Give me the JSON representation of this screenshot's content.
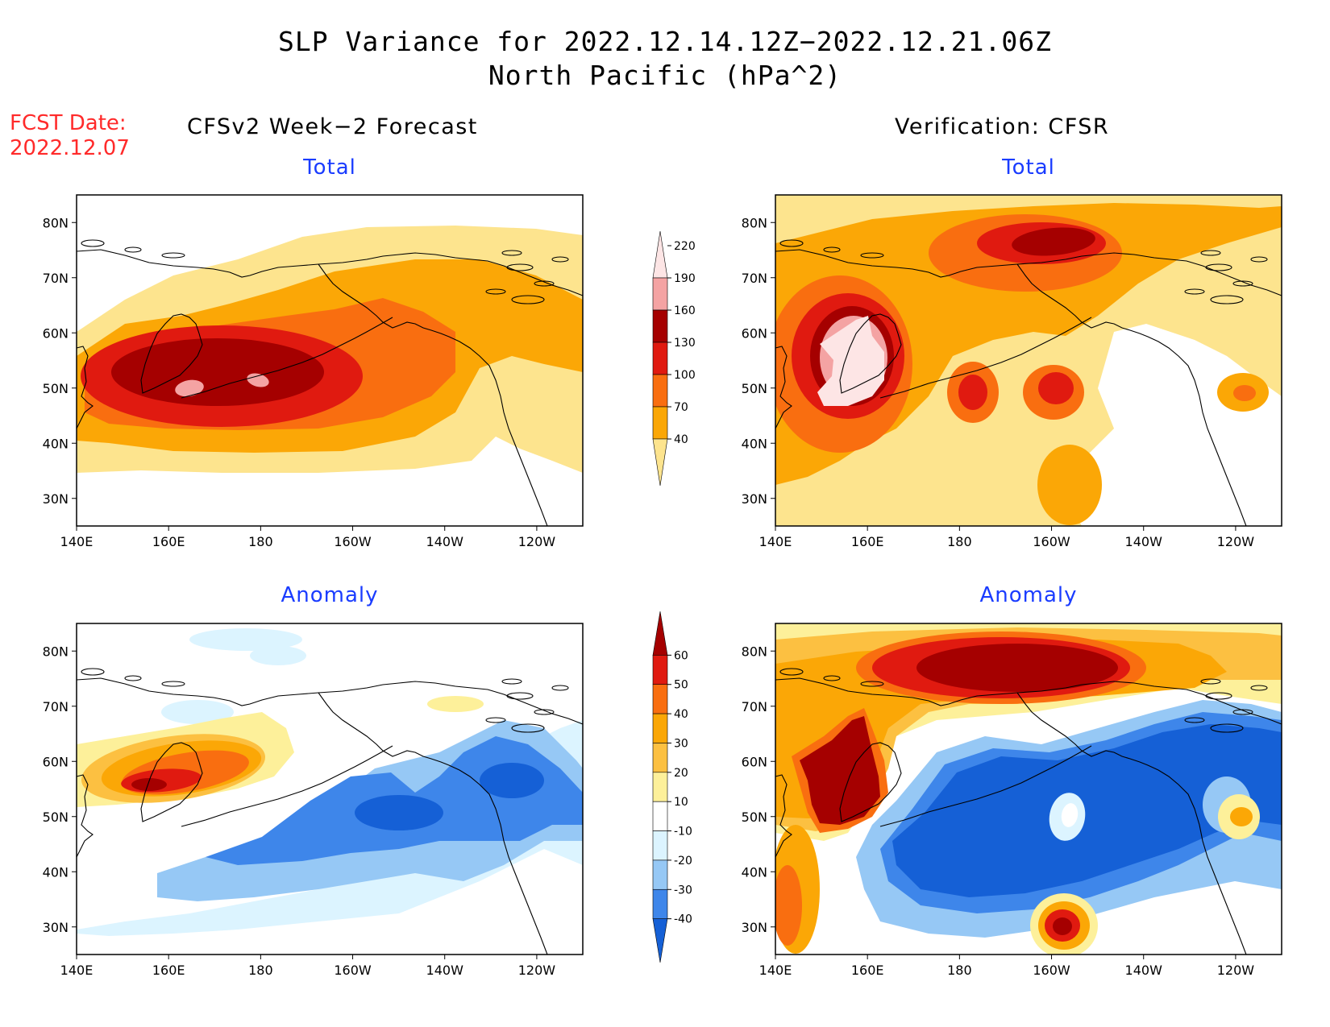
{
  "title": {
    "line1": "SLP Variance for 2022.12.14.12Z−2022.12.21.06Z",
    "line2": "North Pacific (hPa^2)"
  },
  "fcst_date": {
    "label": "FCST Date:",
    "value": "2022.12.07"
  },
  "columns": {
    "left": "CFSv2 Week−2 Forecast",
    "right": "Verification: CFSR"
  },
  "panels": [
    {
      "id": "forecast-total",
      "title": "Total"
    },
    {
      "id": "verification-total",
      "title": "Total"
    },
    {
      "id": "forecast-anomaly",
      "title": "Anomaly"
    },
    {
      "id": "verification-anomaly",
      "title": "Anomaly"
    }
  ],
  "axes": {
    "x_ticks": [
      "140E",
      "160E",
      "180",
      "160W",
      "140W",
      "120W"
    ],
    "y_ticks": [
      "80N",
      "70N",
      "60N",
      "50N",
      "40N",
      "30N"
    ],
    "lon_range": [
      140,
      250
    ],
    "lat_range": [
      25,
      85
    ]
  },
  "colorbars": {
    "total": {
      "levels": [
        "40",
        "70",
        "100",
        "130",
        "160",
        "190",
        "220"
      ],
      "colors": [
        "#fde48e",
        "#fba706",
        "#f96e10",
        "#e01a10",
        "#a50000",
        "#f4a3a3",
        "#fde5e5"
      ]
    },
    "anomaly": {
      "levels": [
        "-40",
        "-30",
        "-20",
        "-10",
        "10",
        "20",
        "30",
        "40",
        "50",
        "60"
      ],
      "colors": [
        "#1560d6",
        "#3e86ea",
        "#96c8f5",
        "#dcf4ff",
        "#ffffff",
        "#fdf09a",
        "#fcc041",
        "#fba706",
        "#f96e10",
        "#e01a10",
        "#a50000"
      ]
    }
  }
}
